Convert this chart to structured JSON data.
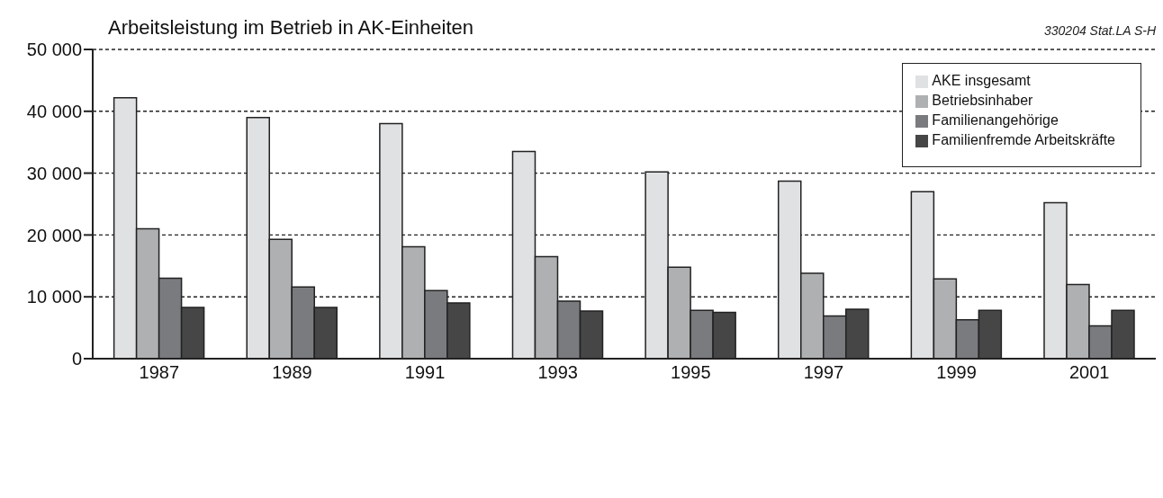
{
  "chart_data": {
    "type": "bar",
    "title": "Arbeitsleistung im Betrieb in AK-Einheiten",
    "annotations": [
      "330204 Stat.LA S-H"
    ],
    "categories": [
      "1987",
      "1989",
      "1991",
      "1993",
      "1995",
      "1997",
      "1999",
      "2001"
    ],
    "series": [
      {
        "name": "AKE insgesamt",
        "color": "#e0e1e3",
        "values": [
          42200,
          39000,
          38000,
          33500,
          30200,
          28700,
          27000,
          25200
        ]
      },
      {
        "name": "Betriebsinhaber",
        "color": "#afb0b2",
        "values": [
          21000,
          19300,
          18100,
          16500,
          14800,
          13800,
          12900,
          12000
        ]
      },
      {
        "name": "Familienangehörige",
        "color": "#7a7b7f",
        "values": [
          13000,
          11600,
          11000,
          9300,
          7800,
          6900,
          6300,
          5300
        ]
      },
      {
        "name": "Familienfremde Arbeitskräfte",
        "color": "#464646",
        "values": [
          8300,
          8300,
          9000,
          7700,
          7500,
          8000,
          7800,
          7800
        ]
      }
    ],
    "ylim": [
      0,
      50000
    ],
    "yticks": [
      {
        "value": 0,
        "label": "0"
      },
      {
        "value": 10000,
        "label": "10 000"
      },
      {
        "value": 20000,
        "label": "20 000"
      },
      {
        "value": 30000,
        "label": "30 000"
      },
      {
        "value": 40000,
        "label": "40 000"
      },
      {
        "value": 50000,
        "label": "50 000"
      }
    ],
    "grid": "y",
    "legend": "top right"
  }
}
